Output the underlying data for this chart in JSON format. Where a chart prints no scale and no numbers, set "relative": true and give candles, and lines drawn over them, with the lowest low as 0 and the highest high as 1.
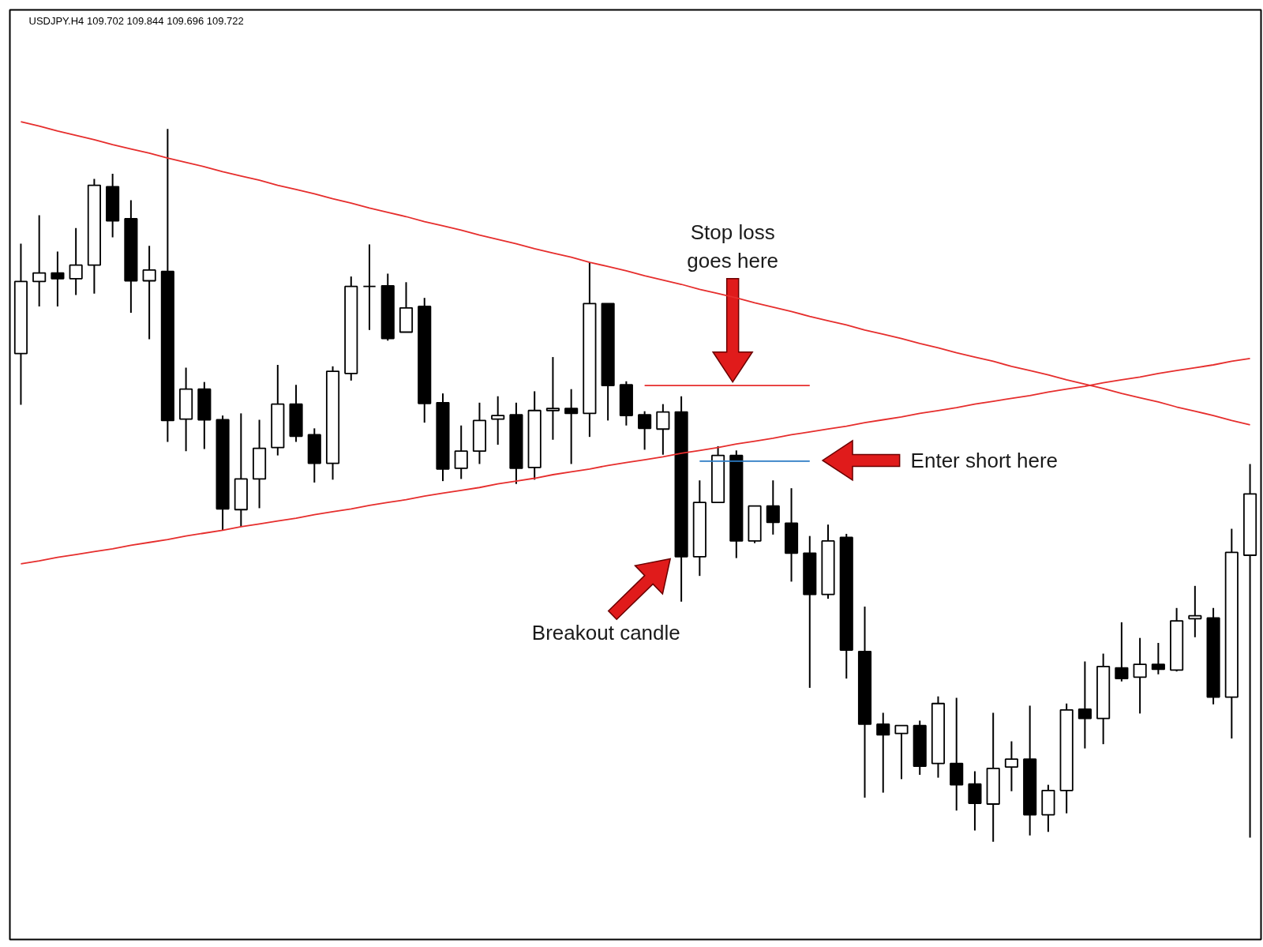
{
  "chart_data": {
    "type": "candlestick",
    "title": "USDJPY.H4  109.702 109.844 109.696 109.722",
    "relative": true,
    "categories": [
      null,
      null,
      null,
      null,
      null,
      null,
      null,
      null,
      null,
      null,
      null,
      null,
      null,
      null,
      null,
      null,
      null,
      null,
      null,
      null,
      null,
      null,
      null,
      null,
      null,
      null,
      null,
      null,
      null,
      null,
      null,
      null,
      null,
      null,
      null,
      null,
      null,
      null,
      null,
      null,
      null,
      null,
      null,
      null,
      null,
      null,
      null,
      null,
      null,
      null,
      null,
      null,
      null,
      null,
      null,
      null,
      null,
      null,
      null,
      null,
      null,
      null,
      null,
      null,
      null,
      null,
      null,
      null
    ],
    "ohlc": [
      [
        0.685,
        0.839,
        0.613,
        0.786
      ],
      [
        0.786,
        0.879,
        0.751,
        0.798
      ],
      [
        0.798,
        0.828,
        0.751,
        0.79
      ],
      [
        0.79,
        0.861,
        0.767,
        0.809
      ],
      [
        0.809,
        0.93,
        0.769,
        0.921
      ],
      [
        0.919,
        0.937,
        0.848,
        0.871
      ],
      [
        0.874,
        0.9,
        0.742,
        0.787
      ],
      [
        0.787,
        0.836,
        0.705,
        0.802
      ],
      [
        0.8,
        1.0,
        0.561,
        0.591
      ],
      [
        0.593,
        0.665,
        0.548,
        0.635
      ],
      [
        0.635,
        0.645,
        0.551,
        0.592
      ],
      [
        0.592,
        0.598,
        0.437,
        0.467
      ],
      [
        0.466,
        0.601,
        0.442,
        0.509
      ],
      [
        0.509,
        0.592,
        0.468,
        0.552
      ],
      [
        0.553,
        0.669,
        0.542,
        0.614
      ],
      [
        0.614,
        0.641,
        0.561,
        0.569
      ],
      [
        0.571,
        0.58,
        0.504,
        0.531
      ],
      [
        0.531,
        0.667,
        0.508,
        0.66
      ],
      [
        0.657,
        0.793,
        0.647,
        0.779
      ],
      [
        0.779,
        0.838,
        0.718,
        0.779
      ],
      [
        0.78,
        0.797,
        0.703,
        0.706
      ],
      [
        0.715,
        0.785,
        0.715,
        0.749
      ],
      [
        0.751,
        0.763,
        0.588,
        0.615
      ],
      [
        0.616,
        0.629,
        0.506,
        0.523
      ],
      [
        0.524,
        0.584,
        0.509,
        0.548
      ],
      [
        0.548,
        0.616,
        0.53,
        0.591
      ],
      [
        0.593,
        0.625,
        0.557,
        0.598
      ],
      [
        0.599,
        0.616,
        0.502,
        0.524
      ],
      [
        0.525,
        0.632,
        0.508,
        0.605
      ],
      [
        0.605,
        0.68,
        0.564,
        0.608
      ],
      [
        0.608,
        0.635,
        0.53,
        0.601
      ],
      [
        0.601,
        0.813,
        0.568,
        0.755
      ],
      [
        0.755,
        0.755,
        0.591,
        0.64
      ],
      [
        0.641,
        0.646,
        0.584,
        0.598
      ],
      [
        0.599,
        0.604,
        0.55,
        0.58
      ],
      [
        0.579,
        0.614,
        0.543,
        0.603
      ],
      [
        0.603,
        0.625,
        0.337,
        0.4
      ],
      [
        0.4,
        0.507,
        0.373,
        0.476
      ],
      [
        0.476,
        0.555,
        0.476,
        0.542
      ],
      [
        0.542,
        0.549,
        0.398,
        0.422
      ],
      [
        0.422,
        0.471,
        0.419,
        0.471
      ],
      [
        0.471,
        0.507,
        0.431,
        0.448
      ],
      [
        0.447,
        0.496,
        0.365,
        0.405
      ],
      [
        0.405,
        0.429,
        0.216,
        0.347
      ],
      [
        0.347,
        0.445,
        0.341,
        0.422
      ],
      [
        0.427,
        0.432,
        0.229,
        0.269
      ],
      [
        0.267,
        0.33,
        0.062,
        0.165
      ],
      [
        0.165,
        0.181,
        0.069,
        0.15
      ],
      [
        0.152,
        0.163,
        0.088,
        0.163
      ],
      [
        0.163,
        0.17,
        0.094,
        0.106
      ],
      [
        0.11,
        0.204,
        0.09,
        0.194
      ],
      [
        0.11,
        0.202,
        0.044,
        0.08
      ],
      [
        0.081,
        0.099,
        0.016,
        0.054
      ],
      [
        0.053,
        0.181,
        0.0,
        0.103
      ],
      [
        0.105,
        0.141,
        0.071,
        0.116
      ],
      [
        0.116,
        0.191,
        0.009,
        0.038
      ],
      [
        0.038,
        0.08,
        0.014,
        0.072
      ],
      [
        0.072,
        0.194,
        0.04,
        0.185
      ],
      [
        0.186,
        0.253,
        0.131,
        0.173
      ],
      [
        0.173,
        0.264,
        0.137,
        0.246
      ],
      [
        0.244,
        0.308,
        0.225,
        0.229
      ],
      [
        0.231,
        0.286,
        0.18,
        0.249
      ],
      [
        0.249,
        0.279,
        0.235,
        0.242
      ],
      [
        0.241,
        0.328,
        0.239,
        0.31
      ],
      [
        0.313,
        0.359,
        0.287,
        0.317
      ],
      [
        0.314,
        0.328,
        0.193,
        0.203
      ],
      [
        0.203,
        0.439,
        0.145,
        0.406
      ],
      [
        0.402,
        0.53,
        0.006,
        0.488
      ]
    ],
    "colors": [
      "#ffffff",
      "#ffffff",
      "#000000",
      "#ffffff",
      "#ffffff",
      "#000000",
      "#000000",
      "#ffffff",
      "#000000",
      "#ffffff",
      "#000000",
      "#000000",
      "#ffffff",
      "#ffffff",
      "#ffffff",
      "#000000",
      "#000000",
      "#ffffff",
      "#ffffff",
      "#000000",
      "#000000",
      "#ffffff",
      "#000000",
      "#000000",
      "#ffffff",
      "#ffffff",
      "#ffffff",
      "#000000",
      "#ffffff",
      "#ffffff",
      "#000000",
      "#ffffff",
      "#000000",
      "#000000",
      "#000000",
      "#ffffff",
      "#000000",
      "#ffffff",
      "#ffffff",
      "#000000",
      "#ffffff",
      "#000000",
      "#000000",
      "#000000",
      "#ffffff",
      "#000000",
      "#000000",
      "#000000",
      "#ffffff",
      "#000000",
      "#ffffff",
      "#000000",
      "#000000",
      "#ffffff",
      "#ffffff",
      "#000000",
      "#ffffff",
      "#ffffff",
      "#000000",
      "#ffffff",
      "#000000",
      "#ffffff",
      "#000000",
      "#ffffff",
      "#ffffff",
      "#000000",
      "#ffffff",
      "#ffffff"
    ],
    "series": [
      {
        "type": "line",
        "color": "#e62e2d",
        "values": [
          1.01,
          1.004,
          0.997,
          0.991,
          0.985,
          0.978,
          0.972,
          0.966,
          0.959,
          0.953,
          0.947,
          0.94,
          0.934,
          0.928,
          0.921,
          0.915,
          0.909,
          0.902,
          0.896,
          0.889,
          0.883,
          0.877,
          0.87,
          0.864,
          0.858,
          0.851,
          0.845,
          0.839,
          0.832,
          0.826,
          0.82,
          0.813,
          0.807,
          0.801,
          0.794,
          0.788,
          0.782,
          0.775,
          0.769,
          0.763,
          0.756,
          0.75,
          0.744,
          0.737,
          0.731,
          0.725,
          0.718,
          0.712,
          0.706,
          0.699,
          0.693,
          0.686,
          0.68,
          0.674,
          0.667,
          0.661,
          0.655,
          0.648,
          0.642,
          0.636,
          0.629,
          0.623,
          0.617,
          0.61,
          0.604,
          0.598,
          0.591,
          0.585
        ]
      },
      {
        "type": "line",
        "color": "#e62e2d",
        "values": [
          0.39,
          0.394,
          0.399,
          0.403,
          0.407,
          0.411,
          0.416,
          0.42,
          0.424,
          0.429,
          0.433,
          0.437,
          0.442,
          0.446,
          0.45,
          0.454,
          0.459,
          0.463,
          0.467,
          0.472,
          0.476,
          0.48,
          0.485,
          0.489,
          0.493,
          0.497,
          0.502,
          0.506,
          0.51,
          0.515,
          0.519,
          0.523,
          0.528,
          0.532,
          0.536,
          0.54,
          0.545,
          0.549,
          0.553,
          0.558,
          0.562,
          0.566,
          0.571,
          0.575,
          0.579,
          0.583,
          0.588,
          0.592,
          0.596,
          0.601,
          0.605,
          0.609,
          0.614,
          0.618,
          0.622,
          0.626,
          0.631,
          0.635,
          0.639,
          0.644,
          0.648,
          0.652,
          0.657,
          0.661,
          0.665,
          0.669,
          0.674,
          0.678
        ]
      },
      {
        "type": "line",
        "color": "#e62e2d",
        "values": [
          null,
          null,
          null,
          null,
          null,
          null,
          null,
          null,
          null,
          null,
          null,
          null,
          null,
          null,
          null,
          null,
          null,
          null,
          null,
          null,
          null,
          null,
          null,
          null,
          null,
          null,
          null,
          null,
          null,
          null,
          null,
          null,
          null,
          null,
          0.64,
          0.64,
          0.64,
          0.64,
          0.64,
          0.64,
          0.64,
          0.64,
          0.64,
          0.64,
          null,
          null,
          null,
          null,
          null,
          null,
          null,
          null,
          null,
          null,
          null,
          null,
          null,
          null,
          null,
          null,
          null,
          null,
          null,
          null,
          null,
          null,
          null,
          null
        ]
      },
      {
        "type": "line",
        "color": "#2b7bc4",
        "values": [
          null,
          null,
          null,
          null,
          null,
          null,
          null,
          null,
          null,
          null,
          null,
          null,
          null,
          null,
          null,
          null,
          null,
          null,
          null,
          null,
          null,
          null,
          null,
          null,
          null,
          null,
          null,
          null,
          null,
          null,
          null,
          null,
          null,
          null,
          null,
          null,
          null,
          0.534,
          0.534,
          0.534,
          0.534,
          0.534,
          0.534,
          0.534,
          null,
          null,
          null,
          null,
          null,
          null,
          null,
          null,
          null,
          null,
          null,
          null,
          null,
          null,
          null,
          null,
          null,
          null,
          null,
          null,
          null,
          null,
          null,
          null
        ]
      }
    ],
    "annotations": [
      "Stop loss goes here",
      "Enter short here",
      "Breakout candle"
    ]
  }
}
